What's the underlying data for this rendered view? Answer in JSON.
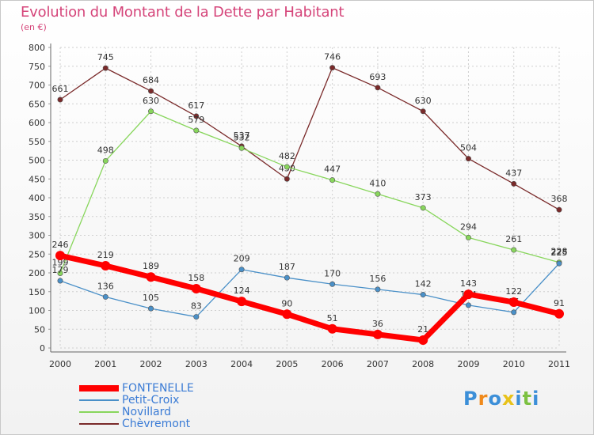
{
  "header": {
    "title": "Evolution du Montant de la Dette par Habitant",
    "subtitle": "(en €)"
  },
  "logo": {
    "text": "Proxiti"
  },
  "chart_data": {
    "type": "line",
    "title": "Evolution du Montant de la Dette par Habitant",
    "subtitle": "(en €)",
    "x": [
      "2000",
      "2001",
      "2002",
      "2003",
      "2004",
      "2005",
      "2006",
      "2007",
      "2008",
      "2009",
      "2010",
      "2011"
    ],
    "ylim": [
      0,
      800
    ],
    "yticks": [
      0,
      50,
      100,
      150,
      200,
      250,
      300,
      350,
      400,
      450,
      500,
      550,
      600,
      650,
      700,
      750,
      800
    ],
    "grid": true,
    "legend_position": "bottom-left",
    "series": [
      {
        "name": "FONTENELLE",
        "color": "#ff0000",
        "values": [
          246,
          219,
          189,
          158,
          124,
          90,
          51,
          36,
          21,
          143,
          122,
          91
        ]
      },
      {
        "name": "Petit-Croix",
        "color": "#4a90c8",
        "values": [
          179,
          136,
          105,
          83,
          209,
          187,
          170,
          156,
          142,
          114,
          95,
          225
        ]
      },
      {
        "name": "Novillard",
        "color": "#88d65c",
        "values": [
          199,
          498,
          630,
          579,
          532,
          482,
          447,
          410,
          373,
          294,
          261,
          228
        ]
      },
      {
        "name": "Chèvremont",
        "color": "#7a2a2a",
        "values": [
          661,
          745,
          684,
          617,
          537,
          450,
          746,
          693,
          630,
          504,
          437,
          368
        ]
      }
    ]
  }
}
